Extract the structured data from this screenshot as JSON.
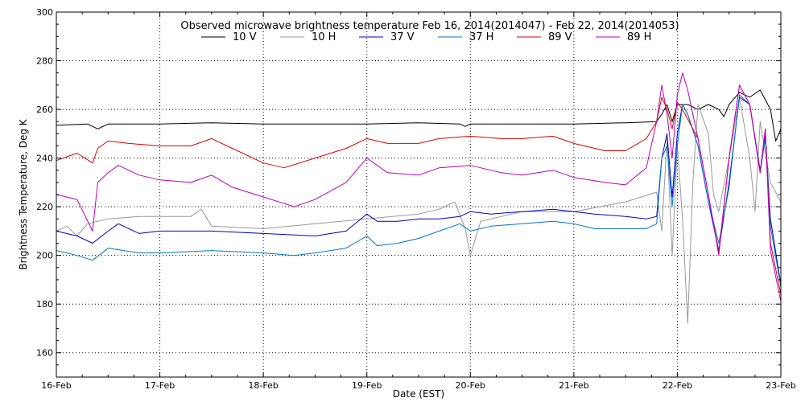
{
  "chart_data": {
    "type": "line",
    "title": "Observed microwave brightness temperature Feb 16, 2014(2014047) - Feb 22, 2014(2014053)",
    "xlabel": "Date (EST)",
    "ylabel": "Brightness Temperature, Deg K",
    "xlim": [
      0,
      7
    ],
    "ylim": [
      150,
      300
    ],
    "x_ticks": [
      {
        "value": 0,
        "label": "16-Feb"
      },
      {
        "value": 1,
        "label": "17-Feb"
      },
      {
        "value": 2,
        "label": "18-Feb"
      },
      {
        "value": 3,
        "label": "19-Feb"
      },
      {
        "value": 4,
        "label": "20-Feb"
      },
      {
        "value": 5,
        "label": "21-Feb"
      },
      {
        "value": 6,
        "label": "22-Feb"
      },
      {
        "value": 7,
        "label": "23-Feb"
      }
    ],
    "y_ticks": [
      160,
      180,
      200,
      220,
      240,
      260,
      280,
      300
    ],
    "grid": true,
    "legend_position": "top-center",
    "series": [
      {
        "name": "10 V",
        "color": "#000000",
        "points": [
          [
            0,
            253.5
          ],
          [
            0.3,
            254
          ],
          [
            0.4,
            252
          ],
          [
            0.5,
            254
          ],
          [
            1.0,
            254
          ],
          [
            1.5,
            254.5
          ],
          [
            2.0,
            254
          ],
          [
            2.5,
            254
          ],
          [
            3.0,
            254
          ],
          [
            3.5,
            254.5
          ],
          [
            3.9,
            254
          ],
          [
            3.95,
            253
          ],
          [
            4.0,
            254
          ],
          [
            4.5,
            254
          ],
          [
            5.0,
            254
          ],
          [
            5.5,
            254.5
          ],
          [
            5.8,
            255
          ],
          [
            5.85,
            258
          ],
          [
            5.9,
            262
          ],
          [
            5.95,
            255
          ],
          [
            6.0,
            262
          ],
          [
            6.1,
            262
          ],
          [
            6.2,
            260
          ],
          [
            6.3,
            262
          ],
          [
            6.4,
            260
          ],
          [
            6.45,
            257
          ],
          [
            6.5,
            262
          ],
          [
            6.6,
            267
          ],
          [
            6.7,
            265
          ],
          [
            6.8,
            268
          ],
          [
            6.9,
            260
          ],
          [
            6.95,
            247
          ],
          [
            7.0,
            252
          ]
        ]
      },
      {
        "name": "10 H",
        "color": "#999999",
        "points": [
          [
            0,
            210
          ],
          [
            0.1,
            212
          ],
          [
            0.2,
            208
          ],
          [
            0.3,
            213
          ],
          [
            0.5,
            215
          ],
          [
            0.8,
            216
          ],
          [
            1.0,
            216
          ],
          [
            1.3,
            216
          ],
          [
            1.4,
            219
          ],
          [
            1.5,
            212
          ],
          [
            2.0,
            211
          ],
          [
            2.5,
            213
          ],
          [
            3.0,
            215
          ],
          [
            3.5,
            217
          ],
          [
            3.7,
            219
          ],
          [
            3.85,
            222
          ],
          [
            3.95,
            211
          ],
          [
            4.0,
            200
          ],
          [
            4.1,
            214
          ],
          [
            4.5,
            218
          ],
          [
            5.0,
            218
          ],
          [
            5.5,
            222
          ],
          [
            5.8,
            226
          ],
          [
            5.85,
            210
          ],
          [
            5.9,
            248
          ],
          [
            5.95,
            200
          ],
          [
            6.0,
            245
          ],
          [
            6.05,
            215
          ],
          [
            6.1,
            172
          ],
          [
            6.15,
            230
          ],
          [
            6.2,
            262
          ],
          [
            6.3,
            250
          ],
          [
            6.35,
            225
          ],
          [
            6.4,
            218
          ],
          [
            6.5,
            240
          ],
          [
            6.6,
            265
          ],
          [
            6.7,
            240
          ],
          [
            6.75,
            218
          ],
          [
            6.8,
            255
          ],
          [
            6.9,
            230
          ],
          [
            7.0,
            222
          ]
        ]
      },
      {
        "name": "37 V",
        "color": "#0000cc",
        "points": [
          [
            0,
            210
          ],
          [
            0.2,
            208
          ],
          [
            0.35,
            205
          ],
          [
            0.5,
            210
          ],
          [
            0.6,
            213
          ],
          [
            0.8,
            209
          ],
          [
            1.0,
            210
          ],
          [
            1.5,
            210
          ],
          [
            2.0,
            209
          ],
          [
            2.5,
            208
          ],
          [
            2.8,
            210
          ],
          [
            3.0,
            217
          ],
          [
            3.1,
            214
          ],
          [
            3.3,
            214
          ],
          [
            3.5,
            215
          ],
          [
            3.7,
            215
          ],
          [
            3.9,
            216
          ],
          [
            4.0,
            218
          ],
          [
            4.2,
            217
          ],
          [
            4.5,
            218
          ],
          [
            4.8,
            219
          ],
          [
            5.0,
            218
          ],
          [
            5.2,
            217
          ],
          [
            5.5,
            216
          ],
          [
            5.7,
            215
          ],
          [
            5.8,
            216
          ],
          [
            5.85,
            240
          ],
          [
            5.9,
            250
          ],
          [
            5.95,
            224
          ],
          [
            6.0,
            250
          ],
          [
            6.05,
            262
          ],
          [
            6.1,
            258
          ],
          [
            6.2,
            245
          ],
          [
            6.3,
            222
          ],
          [
            6.4,
            202
          ],
          [
            6.5,
            230
          ],
          [
            6.6,
            265
          ],
          [
            6.7,
            262
          ],
          [
            6.8,
            235
          ],
          [
            6.85,
            250
          ],
          [
            6.9,
            215
          ],
          [
            7.0,
            188
          ]
        ]
      },
      {
        "name": "37 H",
        "color": "#0077cc",
        "points": [
          [
            0,
            202
          ],
          [
            0.2,
            200
          ],
          [
            0.35,
            198
          ],
          [
            0.5,
            203
          ],
          [
            0.8,
            201
          ],
          [
            1.0,
            201
          ],
          [
            1.5,
            202
          ],
          [
            2.0,
            201
          ],
          [
            2.3,
            200
          ],
          [
            2.5,
            201
          ],
          [
            2.8,
            203
          ],
          [
            3.0,
            208
          ],
          [
            3.1,
            204
          ],
          [
            3.3,
            205
          ],
          [
            3.5,
            207
          ],
          [
            3.7,
            210
          ],
          [
            3.9,
            213
          ],
          [
            4.0,
            210
          ],
          [
            4.2,
            212
          ],
          [
            4.5,
            213
          ],
          [
            4.8,
            214
          ],
          [
            5.0,
            213
          ],
          [
            5.2,
            211
          ],
          [
            5.5,
            211
          ],
          [
            5.7,
            211
          ],
          [
            5.8,
            213
          ],
          [
            5.85,
            240
          ],
          [
            5.9,
            245
          ],
          [
            5.95,
            220
          ],
          [
            6.0,
            245
          ],
          [
            6.05,
            262
          ],
          [
            6.1,
            258
          ],
          [
            6.2,
            245
          ],
          [
            6.3,
            222
          ],
          [
            6.4,
            205
          ],
          [
            6.5,
            228
          ],
          [
            6.6,
            266
          ],
          [
            6.7,
            262
          ],
          [
            6.8,
            234
          ],
          [
            6.85,
            248
          ],
          [
            6.9,
            212
          ],
          [
            7.0,
            187
          ]
        ]
      },
      {
        "name": "89 V",
        "color": "#dd0000",
        "points": [
          [
            0,
            239
          ],
          [
            0.2,
            242
          ],
          [
            0.35,
            238
          ],
          [
            0.4,
            244
          ],
          [
            0.5,
            247
          ],
          [
            0.7,
            246
          ],
          [
            1.0,
            245
          ],
          [
            1.3,
            245
          ],
          [
            1.5,
            248
          ],
          [
            1.7,
            244
          ],
          [
            2.0,
            238
          ],
          [
            2.2,
            236
          ],
          [
            2.5,
            240
          ],
          [
            2.8,
            244
          ],
          [
            3.0,
            248
          ],
          [
            3.2,
            246
          ],
          [
            3.5,
            246
          ],
          [
            3.7,
            248
          ],
          [
            4.0,
            249
          ],
          [
            4.3,
            248
          ],
          [
            4.5,
            248
          ],
          [
            4.8,
            249
          ],
          [
            5.0,
            246
          ],
          [
            5.3,
            243
          ],
          [
            5.5,
            243
          ],
          [
            5.7,
            248
          ],
          [
            5.8,
            255
          ],
          [
            5.85,
            265
          ],
          [
            5.9,
            260
          ],
          [
            5.95,
            252
          ],
          [
            6.0,
            263
          ],
          [
            6.05,
            260
          ],
          [
            6.2,
            248
          ],
          [
            6.3,
            225
          ],
          [
            6.4,
            201
          ],
          [
            6.5,
            240
          ],
          [
            6.6,
            270
          ],
          [
            6.7,
            262
          ],
          [
            6.8,
            234
          ],
          [
            6.85,
            252
          ],
          [
            6.9,
            205
          ],
          [
            7.0,
            184
          ]
        ]
      },
      {
        "name": "89 H",
        "color": "#bb00bb",
        "points": [
          [
            0,
            225
          ],
          [
            0.2,
            223
          ],
          [
            0.35,
            210
          ],
          [
            0.4,
            230
          ],
          [
            0.5,
            234
          ],
          [
            0.6,
            237
          ],
          [
            0.8,
            233
          ],
          [
            1.0,
            231
          ],
          [
            1.3,
            230
          ],
          [
            1.5,
            233
          ],
          [
            1.7,
            228
          ],
          [
            2.0,
            224
          ],
          [
            2.3,
            220
          ],
          [
            2.5,
            223
          ],
          [
            2.8,
            230
          ],
          [
            3.0,
            240
          ],
          [
            3.2,
            234
          ],
          [
            3.5,
            233
          ],
          [
            3.7,
            236
          ],
          [
            4.0,
            237
          ],
          [
            4.3,
            234
          ],
          [
            4.5,
            233
          ],
          [
            4.8,
            235
          ],
          [
            5.0,
            232
          ],
          [
            5.3,
            230
          ],
          [
            5.5,
            229
          ],
          [
            5.7,
            236
          ],
          [
            5.8,
            255
          ],
          [
            5.85,
            270
          ],
          [
            5.9,
            258
          ],
          [
            5.95,
            240
          ],
          [
            6.0,
            266
          ],
          [
            6.05,
            275
          ],
          [
            6.1,
            268
          ],
          [
            6.2,
            248
          ],
          [
            6.3,
            225
          ],
          [
            6.4,
            200
          ],
          [
            6.5,
            240
          ],
          [
            6.6,
            270
          ],
          [
            6.7,
            262
          ],
          [
            6.8,
            234
          ],
          [
            6.85,
            252
          ],
          [
            6.9,
            202
          ],
          [
            7.0,
            181
          ]
        ]
      }
    ]
  }
}
